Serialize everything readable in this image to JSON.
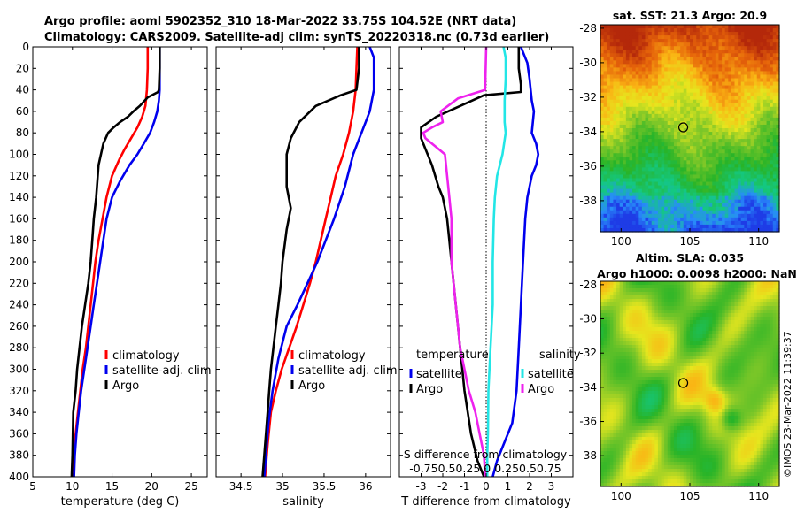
{
  "header": {
    "line1": "Argo profile: aoml 5902352_310 18-Mar-2022 33.75S 104.52E (NRT data)",
    "line2": "Climatology: CARS2009. Satellite-adj clim: synTS_20220318.nc (0.73d earlier)"
  },
  "side_stamp": "©IMOS 23-Mar-2022 11:39:37",
  "colors": {
    "climatology": "#ff0000",
    "satellite": "#0000ee",
    "argo": "#000000",
    "sal_satellite": "#22e6e6",
    "sal_argo": "#ee22ee"
  },
  "depth_axis": {
    "range": [
      0,
      400
    ],
    "ticks": [
      "0",
      "20",
      "40",
      "60",
      "80",
      "100",
      "120",
      "140",
      "160",
      "180",
      "200",
      "220",
      "240",
      "260",
      "280",
      "300",
      "320",
      "340",
      "360",
      "380",
      "400"
    ]
  },
  "chart_data": [
    {
      "id": "temperature",
      "type": "line",
      "xlabel": "temperature (deg C)",
      "xlim": [
        5,
        27
      ],
      "xticks": [
        5,
        10,
        15,
        20,
        25
      ],
      "xtick_labels": [
        "5",
        "10",
        "15",
        "20",
        "25"
      ],
      "legend": {
        "placement": "lower-right",
        "items": [
          {
            "label": "climatology",
            "color": "#ff0000"
          },
          {
            "label": "satellite-adj. clim",
            "color": "#0000ee"
          },
          {
            "label": "Argo",
            "color": "#000000"
          }
        ]
      },
      "series": [
        {
          "name": "climatology",
          "color": "#ff0000",
          "x": [
            19.5,
            19.5,
            19.4,
            19.2,
            18.8,
            18.2,
            17.4,
            16.6,
            15.9,
            15.0,
            14.3,
            13.8,
            13.3,
            12.9,
            12.6,
            12.3,
            12.0,
            11.7,
            11.3,
            11.0,
            10.7,
            10.4,
            10.1,
            10.0,
            10.0
          ],
          "depth": [
            0,
            20,
            40,
            55,
            65,
            75,
            85,
            95,
            105,
            120,
            140,
            160,
            180,
            200,
            220,
            240,
            260,
            280,
            300,
            320,
            340,
            360,
            380,
            395,
            400
          ]
        },
        {
          "name": "satellite-adj. clim",
          "color": "#0000ee",
          "x": [
            21.0,
            21.0,
            21.0,
            20.9,
            20.7,
            20.3,
            19.8,
            19.0,
            18.2,
            17.2,
            16.0,
            15.0,
            14.3,
            13.9,
            13.5,
            13.1,
            12.7,
            12.3,
            11.9,
            11.5,
            11.1,
            10.8,
            10.5,
            10.3,
            10.2
          ],
          "depth": [
            0,
            20,
            40,
            50,
            60,
            70,
            80,
            90,
            100,
            110,
            125,
            140,
            160,
            180,
            200,
            220,
            240,
            260,
            280,
            300,
            320,
            340,
            360,
            380,
            400
          ]
        },
        {
          "name": "Argo",
          "color": "#000000",
          "x": [
            21.0,
            21.0,
            20.9,
            20.8,
            19.5,
            18.5,
            17.7,
            17.0,
            16.0,
            15.2,
            14.5,
            13.9,
            13.3,
            13.2,
            13.0,
            12.7,
            12.5,
            12.3,
            12.0,
            11.6,
            11.2,
            10.9,
            10.6,
            10.4,
            10.1,
            10.0,
            9.9
          ],
          "depth": [
            0,
            20,
            40,
            42,
            47,
            55,
            60,
            65,
            70,
            75,
            80,
            90,
            110,
            120,
            140,
            160,
            180,
            200,
            220,
            240,
            260,
            280,
            300,
            320,
            340,
            380,
            400
          ]
        }
      ]
    },
    {
      "id": "salinity",
      "type": "line",
      "xlabel": "salinity",
      "xlim": [
        34.2,
        36.3
      ],
      "xticks": [
        34.5,
        35,
        35.5,
        36
      ],
      "xtick_labels": [
        "34.5",
        "35",
        "35.5",
        "36"
      ],
      "legend": {
        "placement": "lower-right",
        "items": [
          {
            "label": "climatology",
            "color": "#ff0000"
          },
          {
            "label": "satellite-adj. clim",
            "color": "#0000ee"
          },
          {
            "label": "Argo",
            "color": "#000000"
          }
        ]
      },
      "series": [
        {
          "name": "climatology",
          "color": "#ff0000",
          "x": [
            35.9,
            35.89,
            35.88,
            35.85,
            35.8,
            35.73,
            35.64,
            35.58,
            35.52,
            35.46,
            35.4,
            35.33,
            35.25,
            35.17,
            35.08,
            34.99,
            34.92,
            34.86,
            34.82,
            34.79
          ],
          "depth": [
            0,
            20,
            40,
            60,
            80,
            100,
            120,
            140,
            160,
            180,
            200,
            220,
            240,
            260,
            280,
            300,
            320,
            340,
            370,
            400
          ]
        },
        {
          "name": "satellite-adj. clim",
          "color": "#0000ee",
          "x": [
            36.05,
            36.1,
            36.1,
            36.05,
            36.0,
            35.95,
            35.85,
            35.75,
            35.62,
            35.52,
            35.42,
            35.3,
            35.18,
            35.05,
            34.95,
            34.88,
            34.83,
            34.8,
            34.78
          ],
          "depth": [
            0,
            10,
            40,
            60,
            70,
            80,
            100,
            130,
            160,
            180,
            200,
            220,
            240,
            260,
            290,
            320,
            350,
            380,
            400
          ]
        },
        {
          "name": "Argo",
          "color": "#000000",
          "x": [
            35.92,
            35.92,
            35.89,
            35.7,
            35.4,
            35.2,
            35.1,
            35.05,
            35.05,
            35.1,
            35.05,
            35.0,
            34.98,
            34.95,
            34.92,
            34.89,
            34.86,
            34.84,
            34.82,
            34.8,
            34.78,
            34.76
          ],
          "depth": [
            0,
            20,
            40,
            45,
            55,
            70,
            85,
            100,
            130,
            150,
            170,
            200,
            220,
            240,
            260,
            280,
            300,
            320,
            340,
            360,
            380,
            400
          ]
        }
      ]
    },
    {
      "id": "difference",
      "type": "line",
      "xlabel": "T difference from climatology",
      "xlabel_top": "S difference from climatology",
      "xlim": [
        -4,
        4
      ],
      "xticks": [
        -3,
        -2,
        -1,
        0,
        1,
        2,
        3
      ],
      "xtick_labels": [
        "-3",
        "-2",
        "-1",
        "0",
        "1",
        "2",
        "3"
      ],
      "top_tick_labels": "-0.750.50.25 0 0.250.50.75",
      "legend": {
        "placement": "lower",
        "temperature_title": "temperature",
        "salinity_title": "salinity",
        "items": [
          {
            "label": "satellite",
            "color": "#0000ee",
            "group": "temperature"
          },
          {
            "label": "Argo",
            "color": "#000000",
            "group": "temperature"
          },
          {
            "label": "satellite",
            "color": "#22e6e6",
            "group": "salinity"
          },
          {
            "label": "Argo",
            "color": "#ee22ee",
            "group": "salinity"
          }
        ]
      },
      "series": [
        {
          "name": "T satellite",
          "color": "#0000ee",
          "x": [
            1.6,
            1.9,
            2.0,
            2.1,
            2.2,
            2.1,
            2.3,
            2.4,
            2.3,
            2.1,
            1.9,
            1.8,
            1.7,
            1.6,
            1.5,
            1.4,
            1.2,
            0.8,
            0.5,
            0.3
          ],
          "depth": [
            0,
            15,
            30,
            50,
            60,
            80,
            90,
            100,
            110,
            120,
            140,
            160,
            200,
            240,
            280,
            320,
            350,
            370,
            385,
            400
          ]
        },
        {
          "name": "T Argo",
          "color": "#000000",
          "x": [
            1.5,
            1.5,
            1.6,
            1.6,
            -0.1,
            -1.2,
            -2.3,
            -3.0,
            -3.0,
            -2.8,
            -2.5,
            -2.2,
            -2.0,
            -1.8,
            -1.7,
            -1.6,
            -1.4,
            -1.2,
            -1.0,
            -0.7,
            -0.4,
            -0.1
          ],
          "depth": [
            0,
            20,
            35,
            42,
            45,
            55,
            65,
            75,
            85,
            95,
            110,
            130,
            140,
            160,
            180,
            200,
            240,
            280,
            320,
            360,
            385,
            400
          ]
        },
        {
          "name": "S satellite",
          "color": "#22e6e6",
          "x": [
            0.8,
            0.9,
            0.9,
            0.85,
            0.85,
            0.9,
            0.75,
            0.5,
            0.4,
            0.35,
            0.3,
            0.3,
            0.2,
            0.15,
            0.1,
            0.08,
            0.05,
            0.05
          ],
          "depth": [
            0,
            10,
            30,
            50,
            70,
            80,
            100,
            120,
            140,
            160,
            200,
            240,
            280,
            300,
            320,
            360,
            380,
            400
          ]
        },
        {
          "name": "S Argo",
          "color": "#ee22ee",
          "x": [
            0.0,
            -0.05,
            -1.3,
            -2.1,
            -2.0,
            -2.5,
            -2.9,
            -2.8,
            -2.5,
            -2.2,
            -1.9,
            -1.8,
            -1.7,
            -1.6,
            -1.6,
            -1.4,
            -1.2,
            -1.0,
            -0.8,
            -0.5,
            -0.3,
            -0.1,
            -0.05
          ],
          "depth": [
            0,
            40,
            48,
            60,
            70,
            75,
            80,
            85,
            90,
            95,
            100,
            120,
            140,
            160,
            200,
            240,
            280,
            300,
            320,
            340,
            360,
            380,
            400
          ]
        }
      ]
    },
    {
      "id": "sst_map",
      "type": "heatmap",
      "title": "sat. SST: 21.3 Argo: 20.9",
      "xlim": [
        98.5,
        111.5
      ],
      "ylim": [
        -39.8,
        -27.8
      ],
      "xticks": [
        100,
        105,
        110
      ],
      "xtick_labels": [
        "100",
        "105",
        "110"
      ],
      "yticks": [
        -28,
        -30,
        -32,
        -34,
        -36,
        -38
      ],
      "ytick_labels": [
        "-28",
        "-30",
        "-32",
        "-34",
        "-36",
        "-38"
      ],
      "marker": {
        "lon": 104.52,
        "lat": -33.75
      }
    },
    {
      "id": "sla_map",
      "type": "heatmap",
      "title": "Altim. SLA: 0.035",
      "subtitle": "Argo h1000: 0.0098 h2000: NaN",
      "xlim": [
        98.5,
        111.5
      ],
      "ylim": [
        -39.8,
        -27.8
      ],
      "xticks": [
        100,
        105,
        110
      ],
      "xtick_labels": [
        "100",
        "105",
        "110"
      ],
      "yticks": [
        -28,
        -30,
        -32,
        -34,
        -36,
        -38
      ],
      "ytick_labels": [
        "-28",
        "-30",
        "-32",
        "-34",
        "-36",
        "-38"
      ],
      "marker": {
        "lon": 104.52,
        "lat": -33.75
      }
    }
  ]
}
